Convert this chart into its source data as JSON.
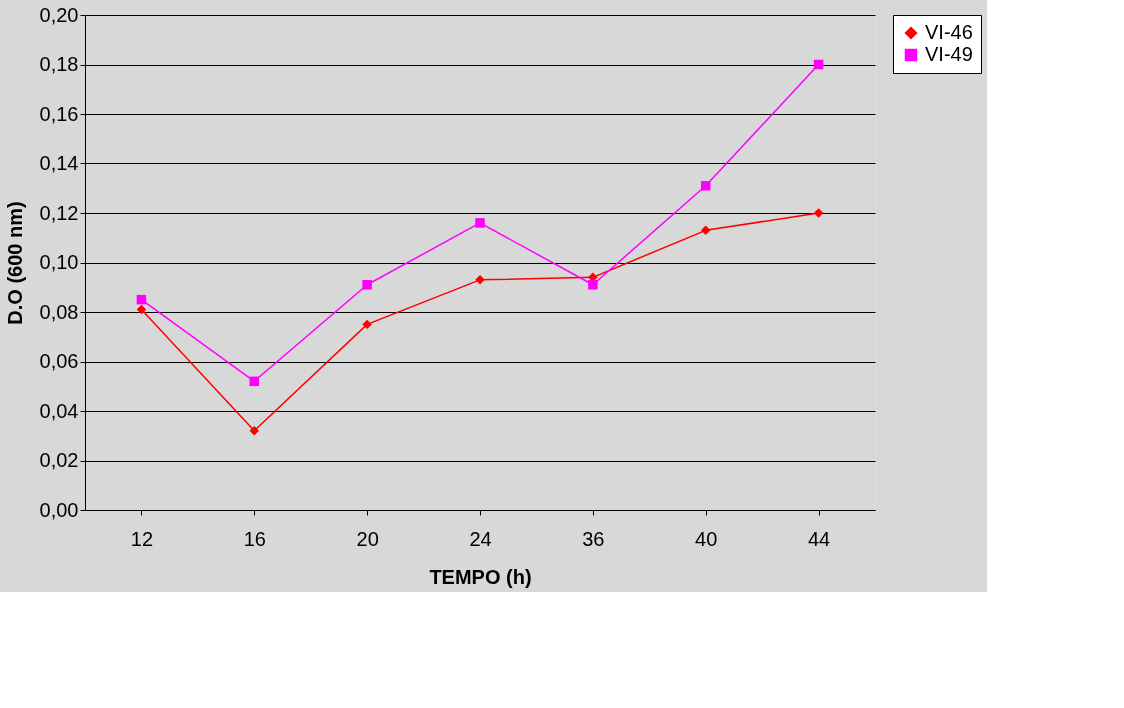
{
  "chart_data": {
    "type": "line",
    "xlabel": "TEMPO (h)",
    "ylabel": "D.O (600 nm)",
    "categories": [
      "12",
      "16",
      "20",
      "24",
      "36",
      "40",
      "44"
    ],
    "series": [
      {
        "name": "VI-46",
        "color": "#ff0000",
        "marker": "diamond",
        "values": [
          0.081,
          0.032,
          0.075,
          0.093,
          0.094,
          0.113,
          0.12
        ]
      },
      {
        "name": "VI-49",
        "color": "#ff00ff",
        "marker": "square",
        "values": [
          0.085,
          0.052,
          0.091,
          0.116,
          0.091,
          0.131,
          0.18
        ]
      }
    ],
    "ylim": [
      0,
      0.2
    ],
    "yticks": [
      {
        "value": 0,
        "label": "0,00"
      },
      {
        "value": 0.02,
        "label": "0,02"
      },
      {
        "value": 0.04,
        "label": "0,04"
      },
      {
        "value": 0.06,
        "label": "0,06"
      },
      {
        "value": 0.08,
        "label": "0,08"
      },
      {
        "value": 0.1,
        "label": "0,10"
      },
      {
        "value": 0.12,
        "label": "0,12"
      },
      {
        "value": 0.14,
        "label": "0,14"
      },
      {
        "value": 0.16,
        "label": "0,16"
      },
      {
        "value": 0.18,
        "label": "0,18"
      },
      {
        "value": 0.2,
        "label": "0,20"
      }
    ],
    "grid": "y",
    "legend": "right",
    "line_style": "solid"
  }
}
